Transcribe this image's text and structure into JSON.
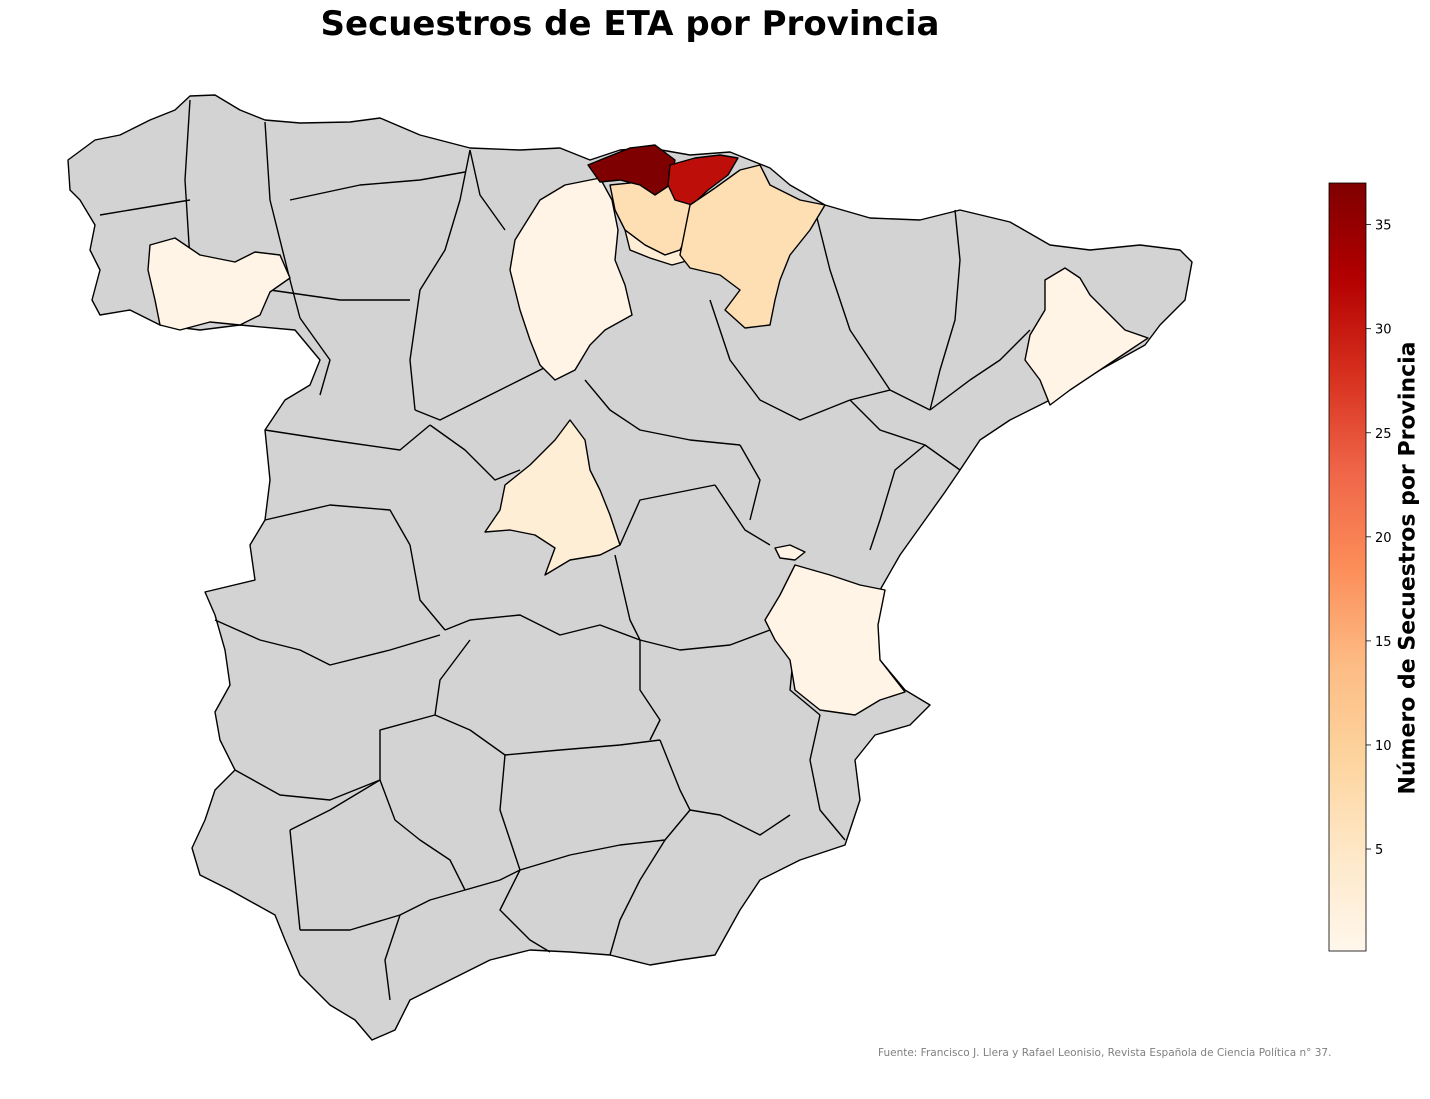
{
  "title": "Secuestros de ETA por Provincia",
  "colorbar": {
    "label": "Número de Secuestros por Provincia",
    "min": 0.1,
    "max": 37,
    "ticks": [
      "5",
      "10",
      "15",
      "20",
      "25",
      "30",
      "35"
    ],
    "tick_values": [
      5,
      10,
      15,
      20,
      25,
      30,
      35
    ],
    "colormap": "OrRd",
    "colormap_stops": [
      "#fff7ec",
      "#fee8c8",
      "#fdd49e",
      "#fdbb84",
      "#fc8d59",
      "#ef6548",
      "#d7301f",
      "#b30000",
      "#7f0000"
    ]
  },
  "no_data_color": "#d3d3d3",
  "border_color": "#000000",
  "source": "Fuente: Francisco J. Llera y Rafael Leonisio, Revista Española de Ciencia Política n° 37.",
  "chart_data": {
    "type": "choropleth",
    "title": "Secuestros de ETA por Provincia",
    "colorbar_label": "Número de Secuestros por Provincia",
    "value_range": [
      0,
      37
    ],
    "legend_position": "right",
    "regions": [
      {
        "name": "Gipuzkoa",
        "value": 37
      },
      {
        "name": "Navarra",
        "value": 31
      },
      {
        "name": "Bizkaia",
        "value": 7
      },
      {
        "name": "Álava",
        "value": 3
      },
      {
        "name": "Madrid",
        "value": 3
      },
      {
        "name": "Burgos",
        "value": 1
      },
      {
        "name": "Lugo",
        "value": 1
      },
      {
        "name": "Barcelona",
        "value": 1
      },
      {
        "name": "Valencia",
        "value": 1
      },
      {
        "name": "Castellón",
        "value": 1
      }
    ]
  }
}
